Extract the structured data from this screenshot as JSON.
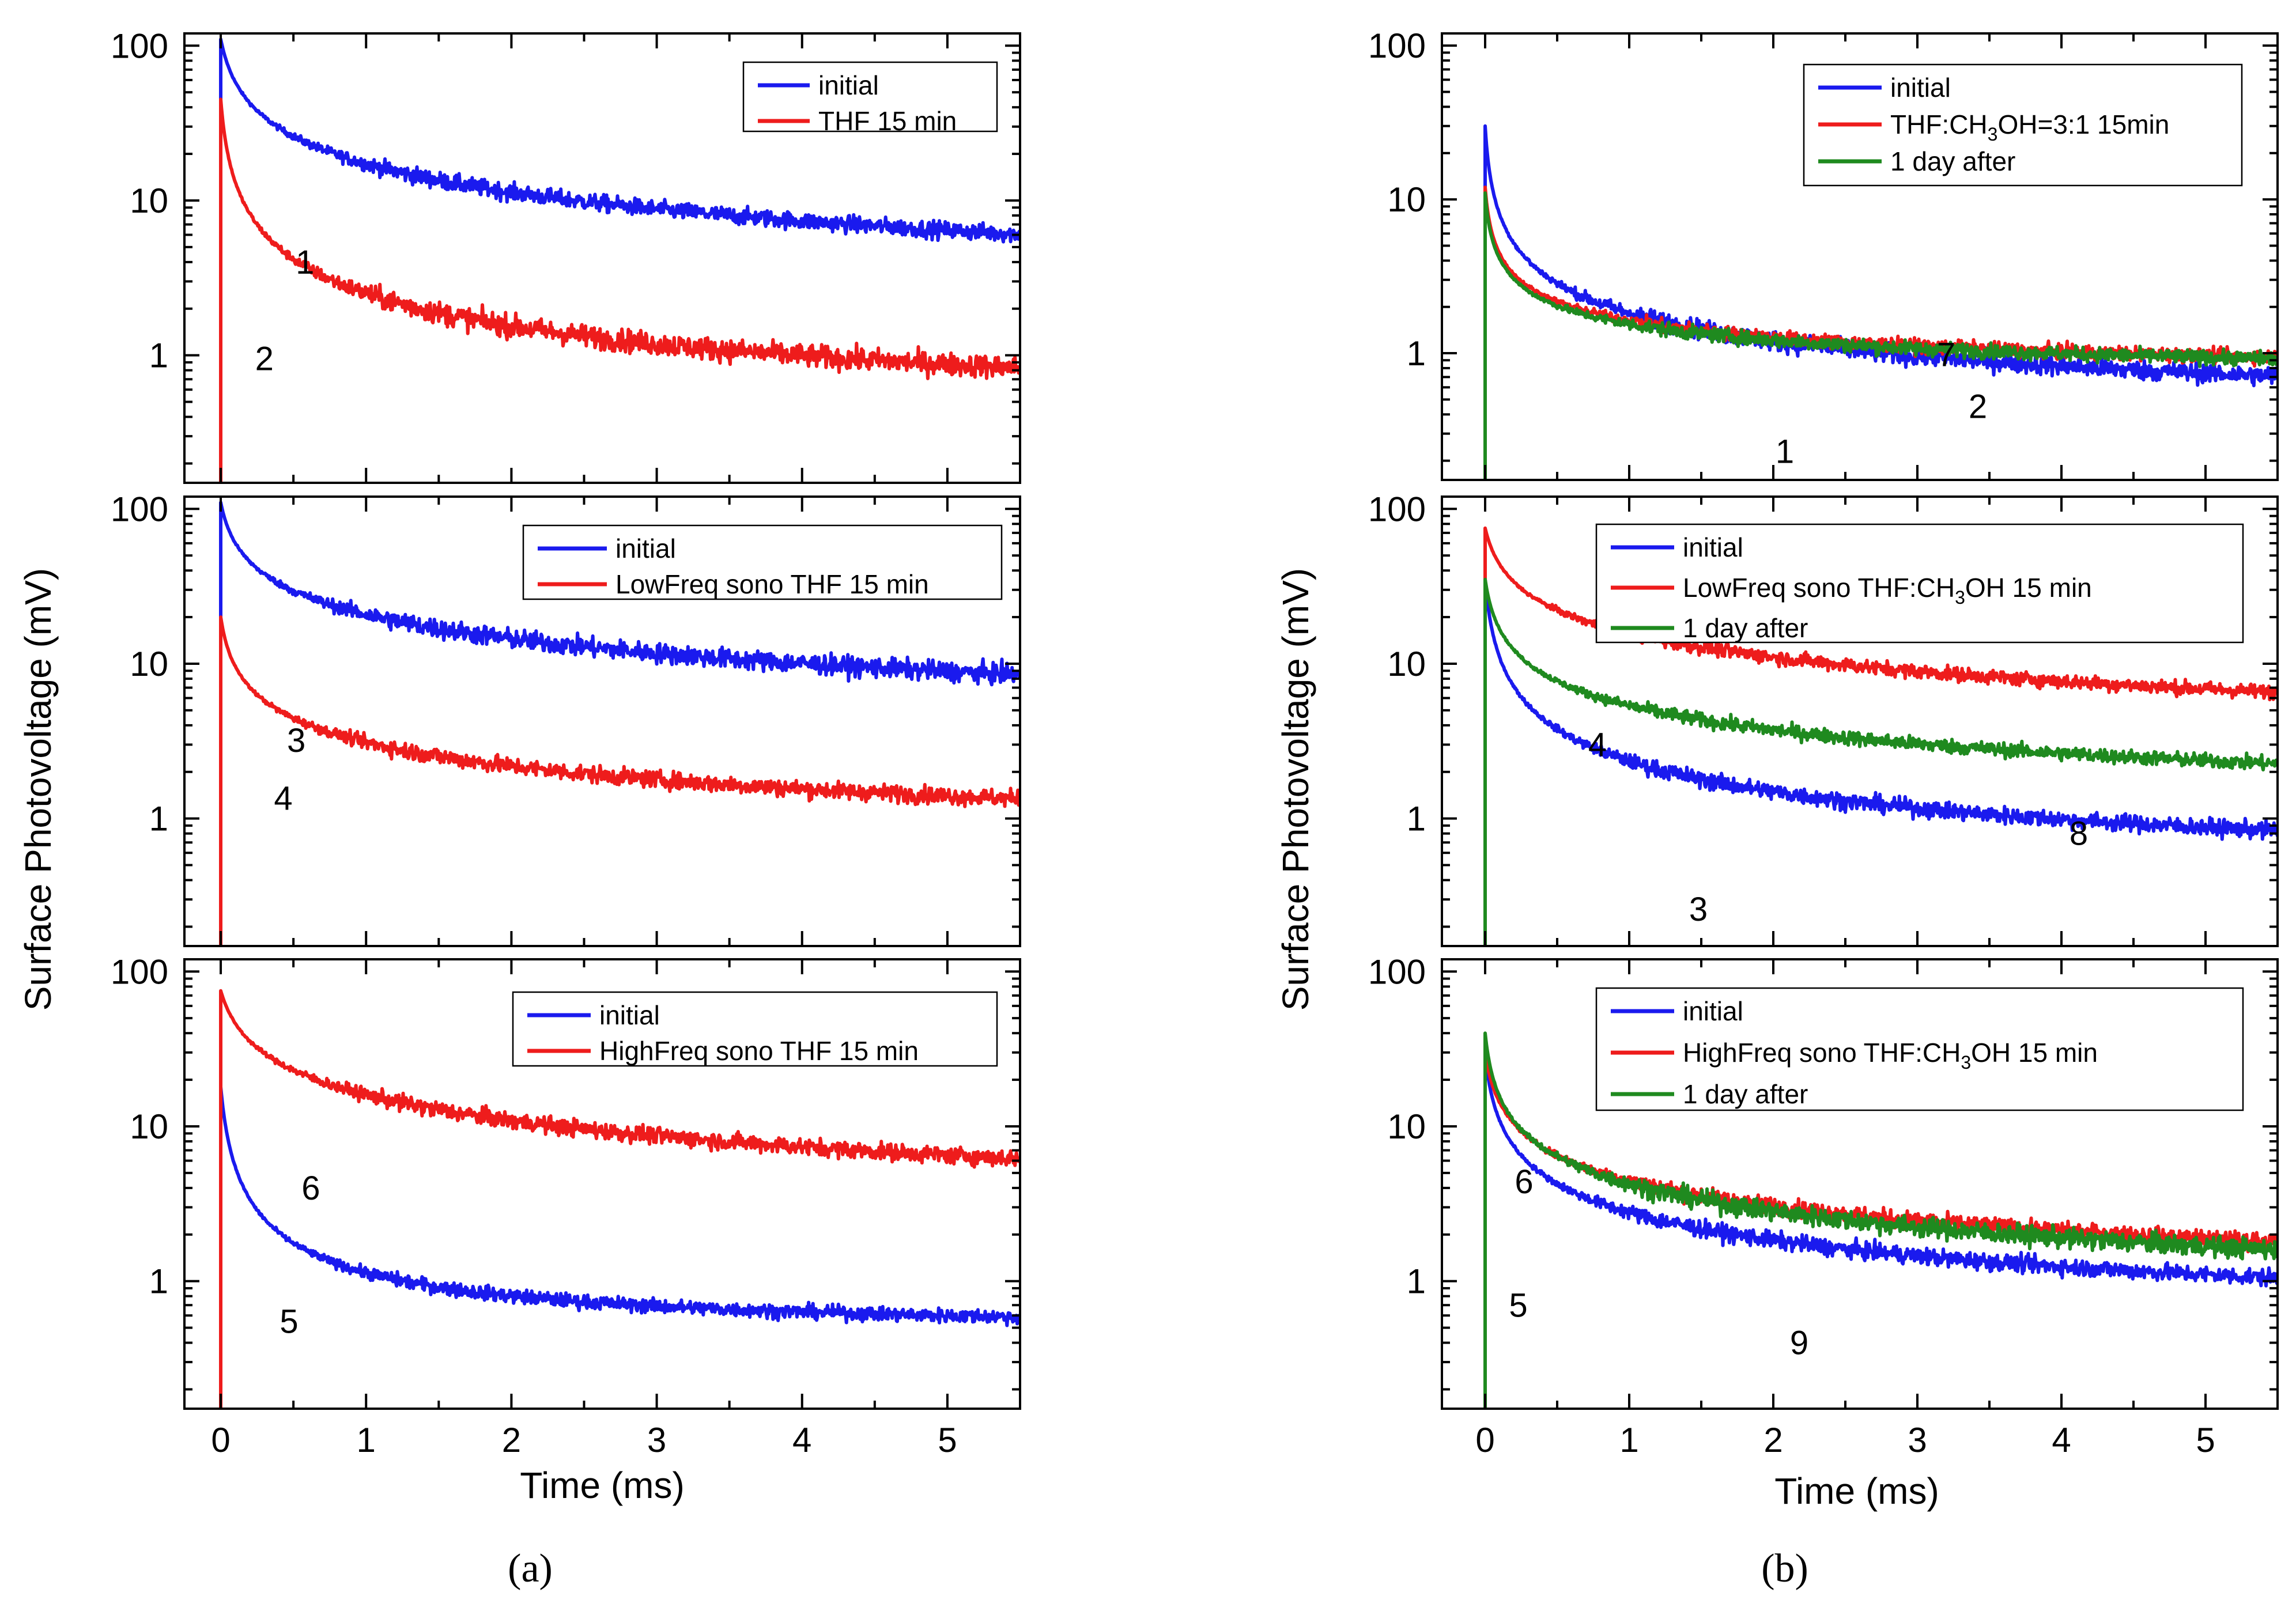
{
  "figure": {
    "caption_a": "(a)",
    "caption_b": "(b)",
    "xlabel": "Time (ms)",
    "ylabel": "Surface Photovoltage (mV)",
    "x_ticks": [
      "0",
      "1",
      "2",
      "3",
      "4",
      "5"
    ],
    "y_ticks": [
      "1",
      "10",
      "100"
    ],
    "colors": {
      "blue": "#1a1aee",
      "red": "#ee1c1c",
      "green": "#1f8a1f"
    }
  },
  "chart_data": [
    {
      "id": "a1",
      "type": "line",
      "xlim": [
        -0.25,
        5.5
      ],
      "ylim": [
        0.15,
        120
      ],
      "yscale": "log",
      "xlabel": "",
      "ylabel": "",
      "legend": [
        {
          "label": "initial",
          "color": "blue"
        },
        {
          "label": "THF 15 min",
          "color": "red"
        }
      ],
      "series": [
        {
          "name": "initial",
          "color": "blue",
          "tau": 0.06,
          "peak": 110,
          "plateau": 0.28,
          "k": 0.65,
          "tail": 0.72,
          "noise": 0.06
        },
        {
          "name": "THF 15 min",
          "color": "red",
          "tau": 0.03,
          "peak": 45,
          "plateau": 0.3,
          "k": 0.85,
          "tail": 0.45,
          "noise": 0.08
        }
      ],
      "annotations": [
        {
          "text": "1",
          "x": 0.58,
          "y": 4.0
        },
        {
          "text": "2",
          "x": 0.3,
          "y": 0.95
        }
      ]
    },
    {
      "id": "a2",
      "type": "line",
      "xlim": [
        -0.25,
        5.5
      ],
      "ylim": [
        0.15,
        120
      ],
      "yscale": "log",
      "xlabel": "",
      "ylabel": "Surface Photovoltage (mV)",
      "legend": [
        {
          "label": "initial",
          "color": "blue"
        },
        {
          "label": "LowFreq sono THF 15 min",
          "color": "red"
        }
      ],
      "series": [
        {
          "name": "initial",
          "color": "blue",
          "tau": 0.05,
          "peak": 110,
          "plateau": 0.25,
          "k": 0.55,
          "tail": 0.9,
          "noise": 0.07
        },
        {
          "name": "LowFreq sono THF 15 min",
          "color": "red",
          "tau": 0.04,
          "peak": 20,
          "plateau": 0.32,
          "k": 0.6,
          "tail": 0.6,
          "noise": 0.06
        }
      ],
      "annotations": [
        {
          "text": "3",
          "x": 0.52,
          "y": 3.2
        },
        {
          "text": "4",
          "x": 0.43,
          "y": 1.35
        }
      ]
    },
    {
      "id": "a3",
      "type": "line",
      "xlim": [
        -0.25,
        5.5
      ],
      "ylim": [
        0.15,
        120
      ],
      "yscale": "log",
      "xlabel": "Time (ms)",
      "ylabel": "",
      "legend": [
        {
          "label": "initial",
          "color": "blue"
        },
        {
          "label": "HighFreq sono THF 15 min",
          "color": "red"
        }
      ],
      "series": [
        {
          "name": "initial",
          "color": "blue",
          "tau": 0.04,
          "peak": 18,
          "plateau": 0.46,
          "k": 1.0,
          "tail": 0.5,
          "noise": 0.05
        },
        {
          "name": "HighFreq sono THF 15 min",
          "color": "red",
          "tau": 0.08,
          "peak": 75,
          "plateau": 0.33,
          "k": 0.6,
          "tail": 0.9,
          "noise": 0.06
        }
      ],
      "annotations": [
        {
          "text": "6",
          "x": 0.62,
          "y": 4.0
        },
        {
          "text": "5",
          "x": 0.47,
          "y": 0.55
        }
      ]
    },
    {
      "id": "b1",
      "type": "line",
      "xlim": [
        -0.3,
        5.5
      ],
      "ylim": [
        0.15,
        120
      ],
      "yscale": "log",
      "xlabel": "",
      "ylabel": "",
      "legend": [
        {
          "label": "initial",
          "color": "blue"
        },
        {
          "label": "THF:CH3OH=3:1 15min",
          "color": "red"
        },
        {
          "label": "1 day after",
          "color": "green"
        }
      ],
      "series": [
        {
          "name": "initial",
          "color": "blue",
          "tau": 0.02,
          "peak": 30,
          "plateau": 0.27,
          "k": 0.75,
          "tail": 0.6,
          "noise": 0.07
        },
        {
          "name": "THF:CH3OH=3:1 15min",
          "color": "red",
          "tau": 0.02,
          "peak": 12,
          "plateau": 0.55,
          "k": 0.6,
          "tail": 0.5,
          "noise": 0.05
        },
        {
          "name": "1 day after",
          "color": "green",
          "tau": 0.02,
          "peak": 11,
          "plateau": 0.56,
          "k": 0.6,
          "tail": 0.5,
          "noise": 0.05
        }
      ],
      "annotations": [
        {
          "text": "7",
          "x": 3.2,
          "y": 0.98
        },
        {
          "text": "2",
          "x": 3.42,
          "y": 0.45
        },
        {
          "text": "1",
          "x": 2.08,
          "y": 0.23
        }
      ]
    },
    {
      "id": "b2",
      "type": "line",
      "xlim": [
        -0.3,
        5.5
      ],
      "ylim": [
        0.15,
        120
      ],
      "yscale": "log",
      "xlabel": "",
      "ylabel": "Surface Photovoltage (mV)",
      "legend": [
        {
          "label": "initial",
          "color": "blue"
        },
        {
          "label": "LowFreq sono THF:CH3OH 15 min",
          "color": "red"
        },
        {
          "label": "1 day after",
          "color": "green"
        }
      ],
      "series": [
        {
          "name": "initial",
          "color": "blue",
          "tau": 0.03,
          "peak": 35,
          "plateau": 0.3,
          "k": 0.8,
          "tail": 0.55,
          "noise": 0.06
        },
        {
          "name": "LowFreq sono THF:CH3OH 15 min",
          "color": "red",
          "tau": 0.06,
          "peak": 75,
          "plateau": 0.35,
          "k": 0.55,
          "tail": 0.9,
          "noise": 0.05
        },
        {
          "name": "1 day after",
          "color": "green",
          "tau": 0.04,
          "peak": 35,
          "plateau": 0.47,
          "k": 0.6,
          "tail": 0.8,
          "noise": 0.05
        }
      ],
      "annotations": [
        {
          "text": "4",
          "x": 0.78,
          "y": 3.0
        },
        {
          "text": "8",
          "x": 4.12,
          "y": 0.8
        },
        {
          "text": "3",
          "x": 1.48,
          "y": 0.26
        }
      ]
    },
    {
      "id": "b3",
      "type": "line",
      "xlim": [
        -0.3,
        5.5
      ],
      "ylim": [
        0.15,
        120
      ],
      "yscale": "log",
      "xlabel": "Time (ms)",
      "ylabel": "",
      "legend": [
        {
          "label": "initial",
          "color": "blue"
        },
        {
          "label": "HighFreq sono THF:CH3OH 15 min",
          "color": "red"
        },
        {
          "label": "1 day after",
          "color": "green"
        }
      ],
      "series": [
        {
          "name": "initial",
          "color": "blue",
          "tau": 0.03,
          "peak": 30,
          "plateau": 0.28,
          "k": 0.7,
          "tail": 0.75,
          "noise": 0.06
        },
        {
          "name": "HighFreq sono THF:CH3OH 15 min",
          "color": "red",
          "tau": 0.04,
          "peak": 30,
          "plateau": 0.25,
          "k": 0.6,
          "tail": 0.9,
          "noise": 0.06
        },
        {
          "name": "1 day after",
          "color": "green",
          "tau": 0.03,
          "peak": 40,
          "plateau": 0.26,
          "k": 0.65,
          "tail": 0.85,
          "noise": 0.07
        }
      ],
      "annotations": [
        {
          "text": "6",
          "x": 0.27,
          "y": 4.4
        },
        {
          "text": "5",
          "x": 0.23,
          "y": 0.7
        },
        {
          "text": "9",
          "x": 2.18,
          "y": 0.4
        }
      ]
    }
  ]
}
